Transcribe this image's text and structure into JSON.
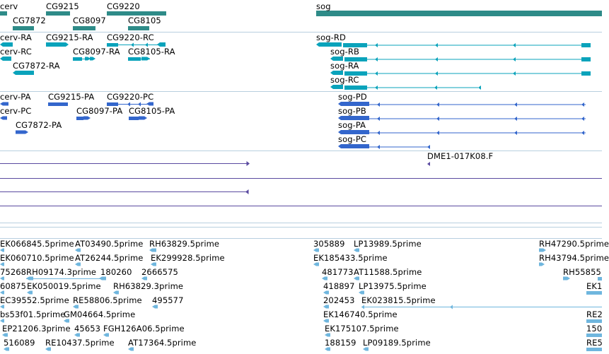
{
  "colors": {
    "gene": "#2e8b88",
    "transcript": "#0aa3bb",
    "protein": "#3366cc",
    "alignment": "#5a4aa0",
    "est": "#6fb6de",
    "separator": "#b8cfdf"
  },
  "tracks": {
    "genes": [
      {
        "label": "cerv",
        "icon": "gene-bar"
      },
      {
        "label": "CG9215",
        "icon": "gene-bar"
      },
      {
        "label": "CG9220",
        "icon": "gene-bar"
      },
      {
        "label": "sog",
        "icon": "gene-bar"
      },
      {
        "label": "CG7872",
        "icon": "gene-bar"
      },
      {
        "label": "CG8097",
        "icon": "gene-bar"
      },
      {
        "label": "CG8105",
        "icon": "gene-bar"
      }
    ],
    "transcripts": [
      {
        "label": "cerv-RA",
        "icon": "transcript-glyph"
      },
      {
        "label": "CG9215-RA",
        "icon": "transcript-glyph"
      },
      {
        "label": "CG9220-RC",
        "icon": "transcript-glyph"
      },
      {
        "label": "sog-RD",
        "icon": "transcript-glyph"
      },
      {
        "label": "cerv-RC",
        "icon": "transcript-glyph"
      },
      {
        "label": "CG8097-RA",
        "icon": "transcript-glyph"
      },
      {
        "label": "CG8105-RA",
        "icon": "transcript-glyph"
      },
      {
        "label": "sog-RB",
        "icon": "transcript-glyph"
      },
      {
        "label": "CG7872-RA",
        "icon": "transcript-glyph"
      },
      {
        "label": "sog-RA",
        "icon": "transcript-glyph"
      },
      {
        "label": "sog-RC",
        "icon": "transcript-glyph"
      }
    ],
    "proteins": [
      {
        "label": "cerv-PA",
        "icon": "protein-glyph"
      },
      {
        "label": "CG9215-PA",
        "icon": "protein-glyph"
      },
      {
        "label": "CG9220-PC",
        "icon": "protein-glyph"
      },
      {
        "label": "sog-PD",
        "icon": "protein-glyph"
      },
      {
        "label": "cerv-PC",
        "icon": "protein-glyph"
      },
      {
        "label": "CG8097-PA",
        "icon": "protein-glyph"
      },
      {
        "label": "CG8105-PA",
        "icon": "protein-glyph"
      },
      {
        "label": "sog-PB",
        "icon": "protein-glyph"
      },
      {
        "label": "CG7872-PA",
        "icon": "protein-glyph"
      },
      {
        "label": "sog-PA",
        "icon": "protein-glyph"
      },
      {
        "label": "sog-PC",
        "icon": "protein-glyph"
      }
    ],
    "alignments": [
      {
        "label": "DME1-017K08.F",
        "icon": "arrow-left-icon"
      }
    ],
    "ests": [
      {
        "label": "EK066845.5prime",
        "icon": "arrow-left-icon"
      },
      {
        "label": "AT03490.5prime",
        "icon": "arrow-left-icon"
      },
      {
        "label": "RH63829.5prime",
        "icon": "arrow-left-icon"
      },
      {
        "label": "305889",
        "icon": "arrow-left-icon"
      },
      {
        "label": "LP13989.5prime",
        "icon": "arrow-left-icon"
      },
      {
        "label": "RH47290.5prime",
        "icon": "arrow-right-icon"
      },
      {
        "label": "EK060710.5prime",
        "icon": "arrow-left-icon"
      },
      {
        "label": "AT26244.5prime",
        "icon": "arrow-left-icon"
      },
      {
        "label": "EK299928.5prime",
        "icon": "arrow-left-icon"
      },
      {
        "label": "EK185433.5prime",
        "icon": "arrow-left-icon"
      },
      {
        "label": "RH43794.5prime",
        "icon": "arrow-right-icon"
      },
      {
        "label": "75268",
        "icon": "arrow-left-icon"
      },
      {
        "label": "RH09174.3prime",
        "icon": "arrow-left-icon"
      },
      {
        "label": "180260",
        "icon": "arrow-left-icon"
      },
      {
        "label": "2666575",
        "icon": "arrow-left-icon"
      },
      {
        "label": "481773",
        "icon": "arrow-left-icon"
      },
      {
        "label": "AT11588.5prime",
        "icon": "arrow-left-icon"
      },
      {
        "label": "RH55855",
        "icon": "arrow-right-icon"
      },
      {
        "label": "60875",
        "icon": "arrow-left-icon"
      },
      {
        "label": "EK050019.5prime",
        "icon": "arrow-left-icon"
      },
      {
        "label": "RH63829.3prime",
        "icon": "arrow-left-icon"
      },
      {
        "label": "418897",
        "icon": "arrow-left-icon"
      },
      {
        "label": "LP13975.5prime",
        "icon": "arrow-left-icon"
      },
      {
        "label": "EK1",
        "icon": "arrow-right-icon"
      },
      {
        "label": "EC39552.5prime",
        "icon": "arrow-left-icon"
      },
      {
        "label": "RE58806.5prime",
        "icon": "arrow-left-icon"
      },
      {
        "label": "495577",
        "icon": "arrow-left-icon"
      },
      {
        "label": "202453",
        "icon": "arrow-left-icon"
      },
      {
        "label": "EK023815.5prime",
        "icon": "arrow-left-icon"
      },
      {
        "label": "bs53f01.5prime",
        "icon": "arrow-left-icon"
      },
      {
        "label": "GM04664.5prime",
        "icon": "arrow-left-icon"
      },
      {
        "label": "EK146740.5prime",
        "icon": "arrow-left-icon"
      },
      {
        "label": "RE2",
        "icon": "arrow-right-icon"
      },
      {
        "label": "EP21206.3prime",
        "icon": "arrow-left-icon"
      },
      {
        "label": "45653",
        "icon": "arrow-left-icon"
      },
      {
        "label": "FGH126A06.5prime",
        "icon": "arrow-left-icon"
      },
      {
        "label": "EK175107.5prime",
        "icon": "arrow-left-icon"
      },
      {
        "label": "150",
        "icon": "arrow-right-icon"
      },
      {
        "label": "516089",
        "icon": "arrow-left-icon"
      },
      {
        "label": "RE10437.5prime",
        "icon": "arrow-left-icon"
      },
      {
        "label": "AT17364.5prime",
        "icon": "arrow-left-icon"
      },
      {
        "label": "188159",
        "icon": "arrow-left-icon"
      },
      {
        "label": "LP09189.5prime",
        "icon": "arrow-left-icon"
      },
      {
        "label": "RE5",
        "icon": "arrow-right-icon"
      }
    ]
  }
}
